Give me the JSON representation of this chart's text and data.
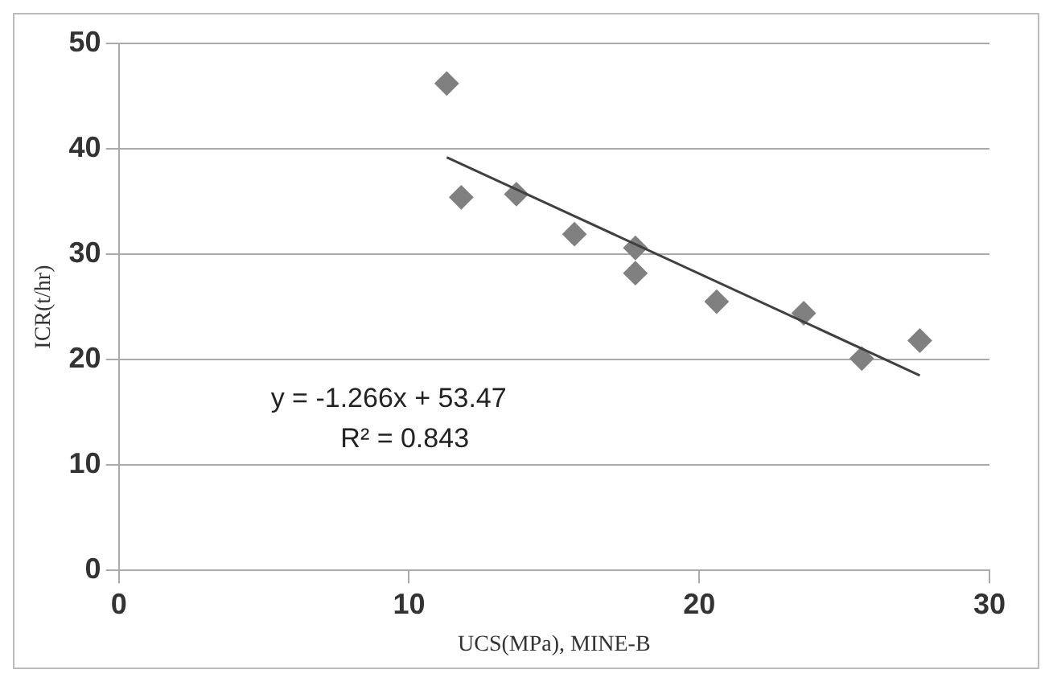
{
  "chart_data": {
    "type": "scatter",
    "xlabel": "UCS(MPa), MINE-B",
    "ylabel": "ICR(t/hr)",
    "annotations": [
      "y = -1.266x + 53.47",
      "R² = 0.843"
    ],
    "xlim": [
      0,
      30
    ],
    "xticks": [
      0,
      10,
      20,
      30
    ],
    "ylim": [
      0,
      50
    ],
    "yticks": [
      0,
      10,
      20,
      30,
      40,
      50
    ],
    "grid": "y",
    "legend": false,
    "marker": "diamond",
    "series": [
      {
        "color": "#808080",
        "x": [
          11.3,
          11.8,
          13.7,
          15.7,
          17.8,
          17.8,
          20.6,
          23.6,
          25.6,
          27.6
        ],
        "values": [
          46.2,
          35.4,
          35.7,
          31.9,
          30.6,
          28.2,
          25.5,
          24.4,
          20.1,
          21.8
        ]
      },
      {
        "type": "line",
        "color": "#404040",
        "x": [
          11.3,
          27.6
        ],
        "values": [
          39.2,
          18.5
        ],
        "marker": "none",
        "line_style": "solid"
      }
    ]
  }
}
